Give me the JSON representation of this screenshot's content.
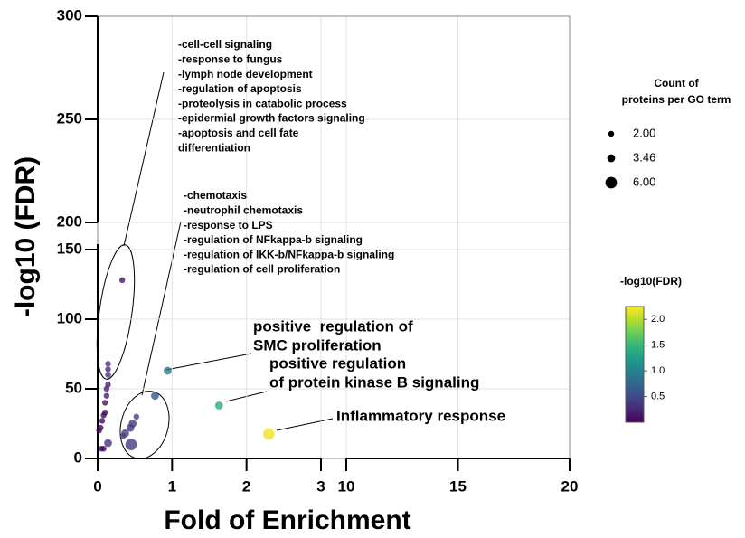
{
  "chart_data": {
    "type": "scatter",
    "x_label": "Fold of Enrichment",
    "y_label": "-log10 (FDR)",
    "x_segments": [
      {
        "xlim": [
          0,
          3
        ],
        "xticks": [
          0,
          1,
          2,
          3
        ]
      },
      {
        "xlim": [
          10,
          20
        ],
        "xticks": [
          10,
          15,
          20
        ]
      }
    ],
    "y_segments": [
      {
        "ylim": [
          0,
          150
        ],
        "yticks": [
          0,
          50,
          100,
          150
        ]
      },
      {
        "ylim": [
          200,
          300
        ],
        "yticks": [
          200,
          250,
          300
        ]
      }
    ],
    "grid": true,
    "x": [
      0.33,
      0.14,
      0.14,
      0.14,
      0.14,
      0.12,
      0.12,
      0.1,
      0.1,
      0.08,
      0.06,
      0.04,
      0.02,
      0.05,
      0.08,
      0.14,
      0.52,
      0.47,
      0.44,
      0.37,
      0.34,
      0.45,
      0.77,
      0.94,
      1.63,
      2.3
    ],
    "y": [
      128,
      68,
      64,
      60,
      53,
      50,
      45,
      40,
      33,
      31,
      27,
      22,
      20,
      7,
      7,
      11,
      30,
      25,
      22,
      18,
      16,
      10,
      45,
      63,
      38,
      17.5
    ],
    "sizes": [
      2,
      2,
      2,
      2,
      2,
      2,
      2,
      2,
      2,
      2,
      2,
      2,
      2,
      2,
      2,
      3.46,
      2,
      3.46,
      3.46,
      3.46,
      2,
      6,
      3.46,
      3.46,
      3.46,
      6
    ],
    "color_values": [
      0.1,
      0.3,
      0.3,
      0.3,
      0.2,
      0.2,
      0.2,
      0.1,
      0.05,
      0.05,
      0.05,
      0.05,
      0.05,
      0.05,
      0.05,
      0.35,
      0.45,
      0.4,
      0.4,
      0.4,
      0.4,
      0.4,
      0.6,
      0.9,
      1.4,
      2.2
    ],
    "colormap": "viridis",
    "size_legend": {
      "title": [
        "Count of",
        "proteins per GO term"
      ],
      "values": [
        2,
        3.46,
        6
      ],
      "value_labels": [
        "2.00",
        "3.46",
        "6.00"
      ]
    },
    "colorbar": {
      "title": "-log10(FDR)",
      "clim": [
        0,
        2.25
      ],
      "ticks": [
        {
          "value": 0.5,
          "label": "0.5"
        },
        {
          "value": 1,
          "label": "1.0"
        },
        {
          "value": 1.5,
          "label": "1.5"
        },
        {
          "value": 2,
          "label": "2.0"
        }
      ]
    },
    "annotations": [
      {
        "lines": [
          "-cell-cell signaling",
          "-response to fungus",
          "-lymph node development",
          "-regulation of apoptosis",
          "-proteolysis in catabolic process",
          "-epidermial growth factors signaling",
          "-apoptosis and cell fate",
          "differentiation"
        ]
      },
      {
        "lines": [
          "-chemotaxis",
          "-neutrophil chemotaxis",
          "-response to LPS",
          "-regulation of NFkappa-b signaling",
          "-regulation of IKK-b/NFkappa-b signaling",
          "-regulation of cell proliferation"
        ]
      },
      {
        "lines": [
          "positive  regulation of",
          "SMC proliferation"
        ]
      },
      {
        "lines": [
          "positive regulation",
          "of protein kinase B signaling"
        ]
      },
      {
        "lines": [
          "Inflammatory response"
        ]
      }
    ]
  }
}
